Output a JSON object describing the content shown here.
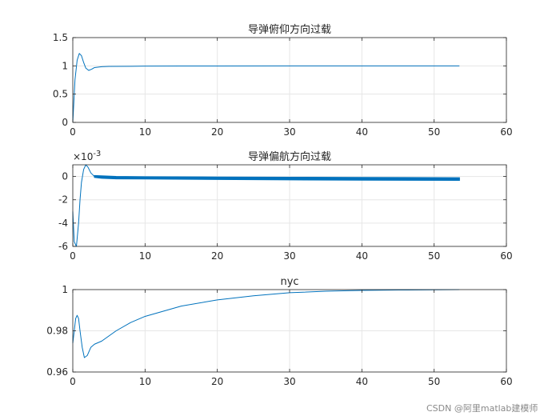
{
  "watermark": "CSDN @阿里matlab建模师",
  "colors": {
    "series": "#0072BD",
    "grid": "#e6e6e6",
    "axis": "#262626",
    "background": "#ffffff"
  },
  "chart_data": [
    {
      "type": "line",
      "title": "导弹俯仰方向过载",
      "xlim": [
        0,
        60
      ],
      "ylim": [
        0,
        1.5
      ],
      "x_ticks": [
        0,
        10,
        20,
        30,
        40,
        50,
        60
      ],
      "x_tick_labels": [
        "0",
        "10",
        "20",
        "30",
        "40",
        "50",
        "60"
      ],
      "y_ticks": [
        0,
        0.5,
        1,
        1.5
      ],
      "y_tick_labels": [
        "0",
        "0.5",
        "1",
        "1.5"
      ],
      "grid": true,
      "series": [
        {
          "x": [
            0,
            0.3,
            0.6,
            0.9,
            1.2,
            1.5,
            1.8,
            2.2,
            2.6,
            3.0,
            4,
            5,
            8,
            10,
            15,
            20,
            30,
            40,
            53.5
          ],
          "y": [
            0,
            0.75,
            1.1,
            1.22,
            1.18,
            1.06,
            0.96,
            0.92,
            0.94,
            0.97,
            0.985,
            0.99,
            0.993,
            0.995,
            0.997,
            0.998,
            0.999,
            1.0,
            1.0
          ]
        }
      ]
    },
    {
      "type": "line",
      "title": "导弹偏航方向过载",
      "y_exponent": "×10-3",
      "xlim": [
        0,
        60
      ],
      "ylim": [
        -6,
        1
      ],
      "x_ticks": [
        0,
        10,
        20,
        30,
        40,
        50,
        60
      ],
      "x_tick_labels": [
        "0",
        "10",
        "20",
        "30",
        "40",
        "50",
        "60"
      ],
      "y_ticks": [
        -6,
        -4,
        -2,
        0
      ],
      "y_tick_labels": [
        "-6",
        "-4",
        "-2",
        "0"
      ],
      "grid": true,
      "band_from": 3.0,
      "series": [
        {
          "x": [
            0,
            0.2,
            0.5,
            0.8,
            1.0,
            1.2,
            1.5,
            1.8,
            2.1,
            2.5,
            3.0,
            4,
            6,
            10,
            20,
            30,
            40,
            53.5
          ],
          "y": [
            -3.0,
            -5.6,
            -6.0,
            -4.0,
            -2.0,
            -0.5,
            0.6,
            1.0,
            0.8,
            0.3,
            0.0,
            -0.05,
            -0.1,
            -0.12,
            -0.15,
            -0.18,
            -0.2,
            -0.22
          ],
          "band": [
            0,
            0,
            0,
            0,
            0,
            0,
            0,
            0,
            0,
            0,
            0.15,
            0.2,
            0.2,
            0.18,
            0.2,
            0.22,
            0.22,
            0.22
          ]
        }
      ]
    },
    {
      "type": "line",
      "title": "nyc",
      "xlim": [
        0,
        60
      ],
      "ylim": [
        0.96,
        1
      ],
      "x_ticks": [
        0,
        10,
        20,
        30,
        40,
        50,
        60
      ],
      "x_tick_labels": [
        "0",
        "10",
        "20",
        "30",
        "40",
        "50",
        "60"
      ],
      "y_ticks": [
        0.96,
        0.98,
        1
      ],
      "y_tick_labels": [
        "0.96",
        "0.98",
        "1"
      ],
      "grid": true,
      "series": [
        {
          "x": [
            0,
            0.2,
            0.4,
            0.6,
            0.8,
            1.0,
            1.3,
            1.6,
            2.0,
            2.5,
            3.0,
            4,
            6,
            8,
            10,
            15,
            20,
            25,
            30,
            35,
            40,
            45,
            50,
            53.5
          ],
          "y": [
            0.974,
            0.98,
            0.986,
            0.9875,
            0.986,
            0.98,
            0.972,
            0.967,
            0.968,
            0.972,
            0.9735,
            0.975,
            0.98,
            0.984,
            0.987,
            0.992,
            0.995,
            0.997,
            0.9985,
            0.9992,
            0.9996,
            0.9998,
            0.9999,
            1.0
          ]
        }
      ]
    }
  ]
}
